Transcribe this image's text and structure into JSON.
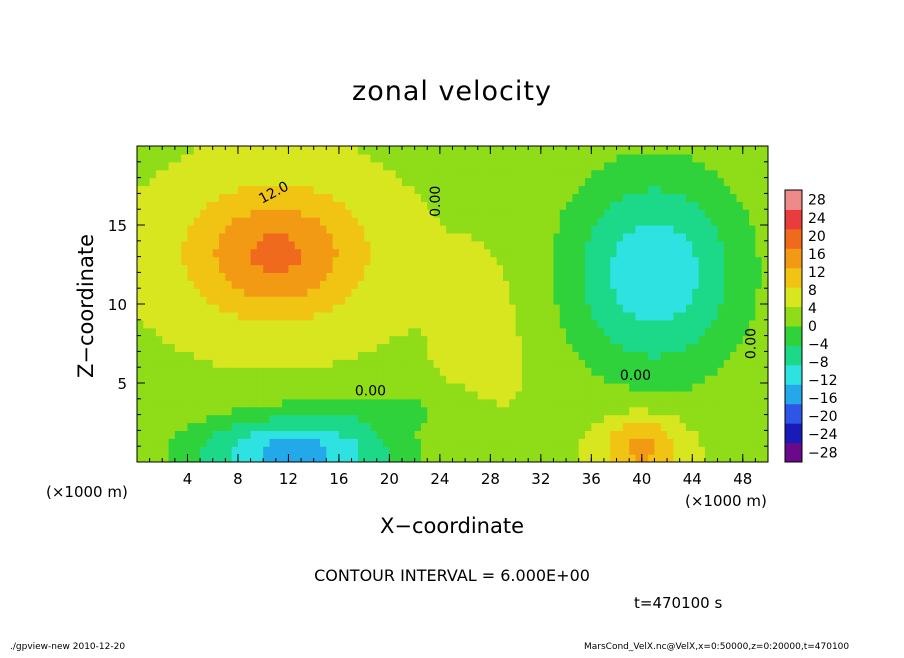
{
  "footer": {
    "program": "./gpview-new  2010-12-20",
    "source": "MarsCond_VelX.nc@VelX,x=0:50000,z=0:20000,t=470100"
  },
  "annotations": {
    "x_unit_left": "(×1000 m)",
    "x_unit_right": "(×1000 m)",
    "contour_interval": "CONTOUR INTERVAL = 6.000E+00",
    "time": "t=470100 s"
  },
  "contour_labels": [
    "12.0",
    "0.00",
    "0.00",
    "0.00",
    "0.00"
  ],
  "colors": {
    "scale": [
      "#6a0a8a",
      "#1a1ab8",
      "#2f55e6",
      "#23a9ea",
      "#2fe2e2",
      "#1cd98a",
      "#2fd23a",
      "#8fdc18",
      "#d8e620",
      "#f1c414",
      "#f39a14",
      "#f06a1e",
      "#e93c3c",
      "#ef8a8a"
    ]
  },
  "chart_data": {
    "type": "heatmap",
    "title": "zonal velocity",
    "xlabel": "X−coordinate",
    "ylabel": "Z−coordinate",
    "xlim": [
      0,
      50
    ],
    "ylim": [
      0,
      20
    ],
    "x_ticks": [
      4,
      8,
      12,
      16,
      20,
      24,
      28,
      32,
      36,
      40,
      44,
      48
    ],
    "y_ticks": [
      5,
      10,
      15
    ],
    "colorbar": {
      "levels": [
        -28,
        -24,
        -20,
        -16,
        -12,
        -8,
        -4,
        0,
        4,
        8,
        12,
        16,
        20,
        24,
        28
      ],
      "tick_labels": [
        "28",
        "24",
        "20",
        "16",
        "12",
        "8",
        "4",
        "0",
        "−4",
        "−8",
        "−12",
        "−16",
        "−20",
        "−24",
        "−28"
      ]
    },
    "features": [
      {
        "x": 11,
        "z": 13,
        "value": 17,
        "note": "positive maximum"
      },
      {
        "x": 40,
        "z": 1.2,
        "value": 14,
        "note": "positive maximum"
      },
      {
        "x": 14,
        "z": 0.5,
        "value": -14,
        "note": "negative minimum"
      },
      {
        "x": 41,
        "z": 12,
        "value": -10,
        "note": "negative minimum"
      }
    ]
  }
}
